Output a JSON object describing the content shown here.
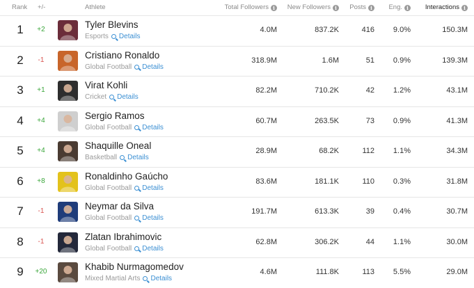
{
  "headers": {
    "rank": "Rank",
    "change": "+/-",
    "athlete": "Athlete",
    "total_followers": "Total Followers",
    "new_followers": "New Followers",
    "posts": "Posts",
    "eng": "Eng.",
    "interactions": "Interactions"
  },
  "info_glyph": "i",
  "details_label": "Details",
  "rows": [
    {
      "rank": "1",
      "change": "+2",
      "direction": "up",
      "name": "Tyler Blevins",
      "category": "Esports",
      "total_followers": "4.0M",
      "new_followers": "837.2K",
      "posts": "416",
      "eng": "9.0%",
      "interactions": "150.3M",
      "avatar_color": "#6b2d3a"
    },
    {
      "rank": "2",
      "change": "-1",
      "direction": "down",
      "name": "Cristiano Ronaldo",
      "category": "Global Football",
      "total_followers": "318.9M",
      "new_followers": "1.6M",
      "posts": "51",
      "eng": "0.9%",
      "interactions": "139.3M",
      "avatar_color": "#c8652a"
    },
    {
      "rank": "3",
      "change": "+1",
      "direction": "up",
      "name": "Virat Kohli",
      "category": "Cricket",
      "total_followers": "82.2M",
      "new_followers": "710.2K",
      "posts": "42",
      "eng": "1.2%",
      "interactions": "43.1M",
      "avatar_color": "#2e2e2e"
    },
    {
      "rank": "4",
      "change": "+4",
      "direction": "up",
      "name": "Sergio Ramos",
      "category": "Global Football",
      "total_followers": "60.7M",
      "new_followers": "263.5K",
      "posts": "73",
      "eng": "0.9%",
      "interactions": "41.3M",
      "avatar_color": "#cfcfcf"
    },
    {
      "rank": "5",
      "change": "+4",
      "direction": "up",
      "name": "Shaquille Oneal",
      "category": "Basketball",
      "total_followers": "28.9M",
      "new_followers": "68.2K",
      "posts": "112",
      "eng": "1.1%",
      "interactions": "34.3M",
      "avatar_color": "#4a3b32"
    },
    {
      "rank": "6",
      "change": "+8",
      "direction": "up",
      "name": "Ronaldinho Gaúcho",
      "category": "Global Football",
      "total_followers": "83.6M",
      "new_followers": "181.1K",
      "posts": "110",
      "eng": "0.3%",
      "interactions": "31.8M",
      "avatar_color": "#e3c21c"
    },
    {
      "rank": "7",
      "change": "-1",
      "direction": "down",
      "name": "Neymar da Silva",
      "category": "Global Football",
      "total_followers": "191.7M",
      "new_followers": "613.3K",
      "posts": "39",
      "eng": "0.4%",
      "interactions": "30.7M",
      "avatar_color": "#1f3c7a"
    },
    {
      "rank": "8",
      "change": "-1",
      "direction": "down",
      "name": "Zlatan Ibrahimovic",
      "category": "Global Football",
      "total_followers": "62.8M",
      "new_followers": "306.2K",
      "posts": "44",
      "eng": "1.1%",
      "interactions": "30.0M",
      "avatar_color": "#23283a"
    },
    {
      "rank": "9",
      "change": "+20",
      "direction": "up",
      "name": "Khabib Nurmagomedov",
      "category": "Mixed Martial Arts",
      "total_followers": "4.6M",
      "new_followers": "111.8K",
      "posts": "113",
      "eng": "5.5%",
      "interactions": "29.0M",
      "avatar_color": "#5a4a3f"
    }
  ]
}
